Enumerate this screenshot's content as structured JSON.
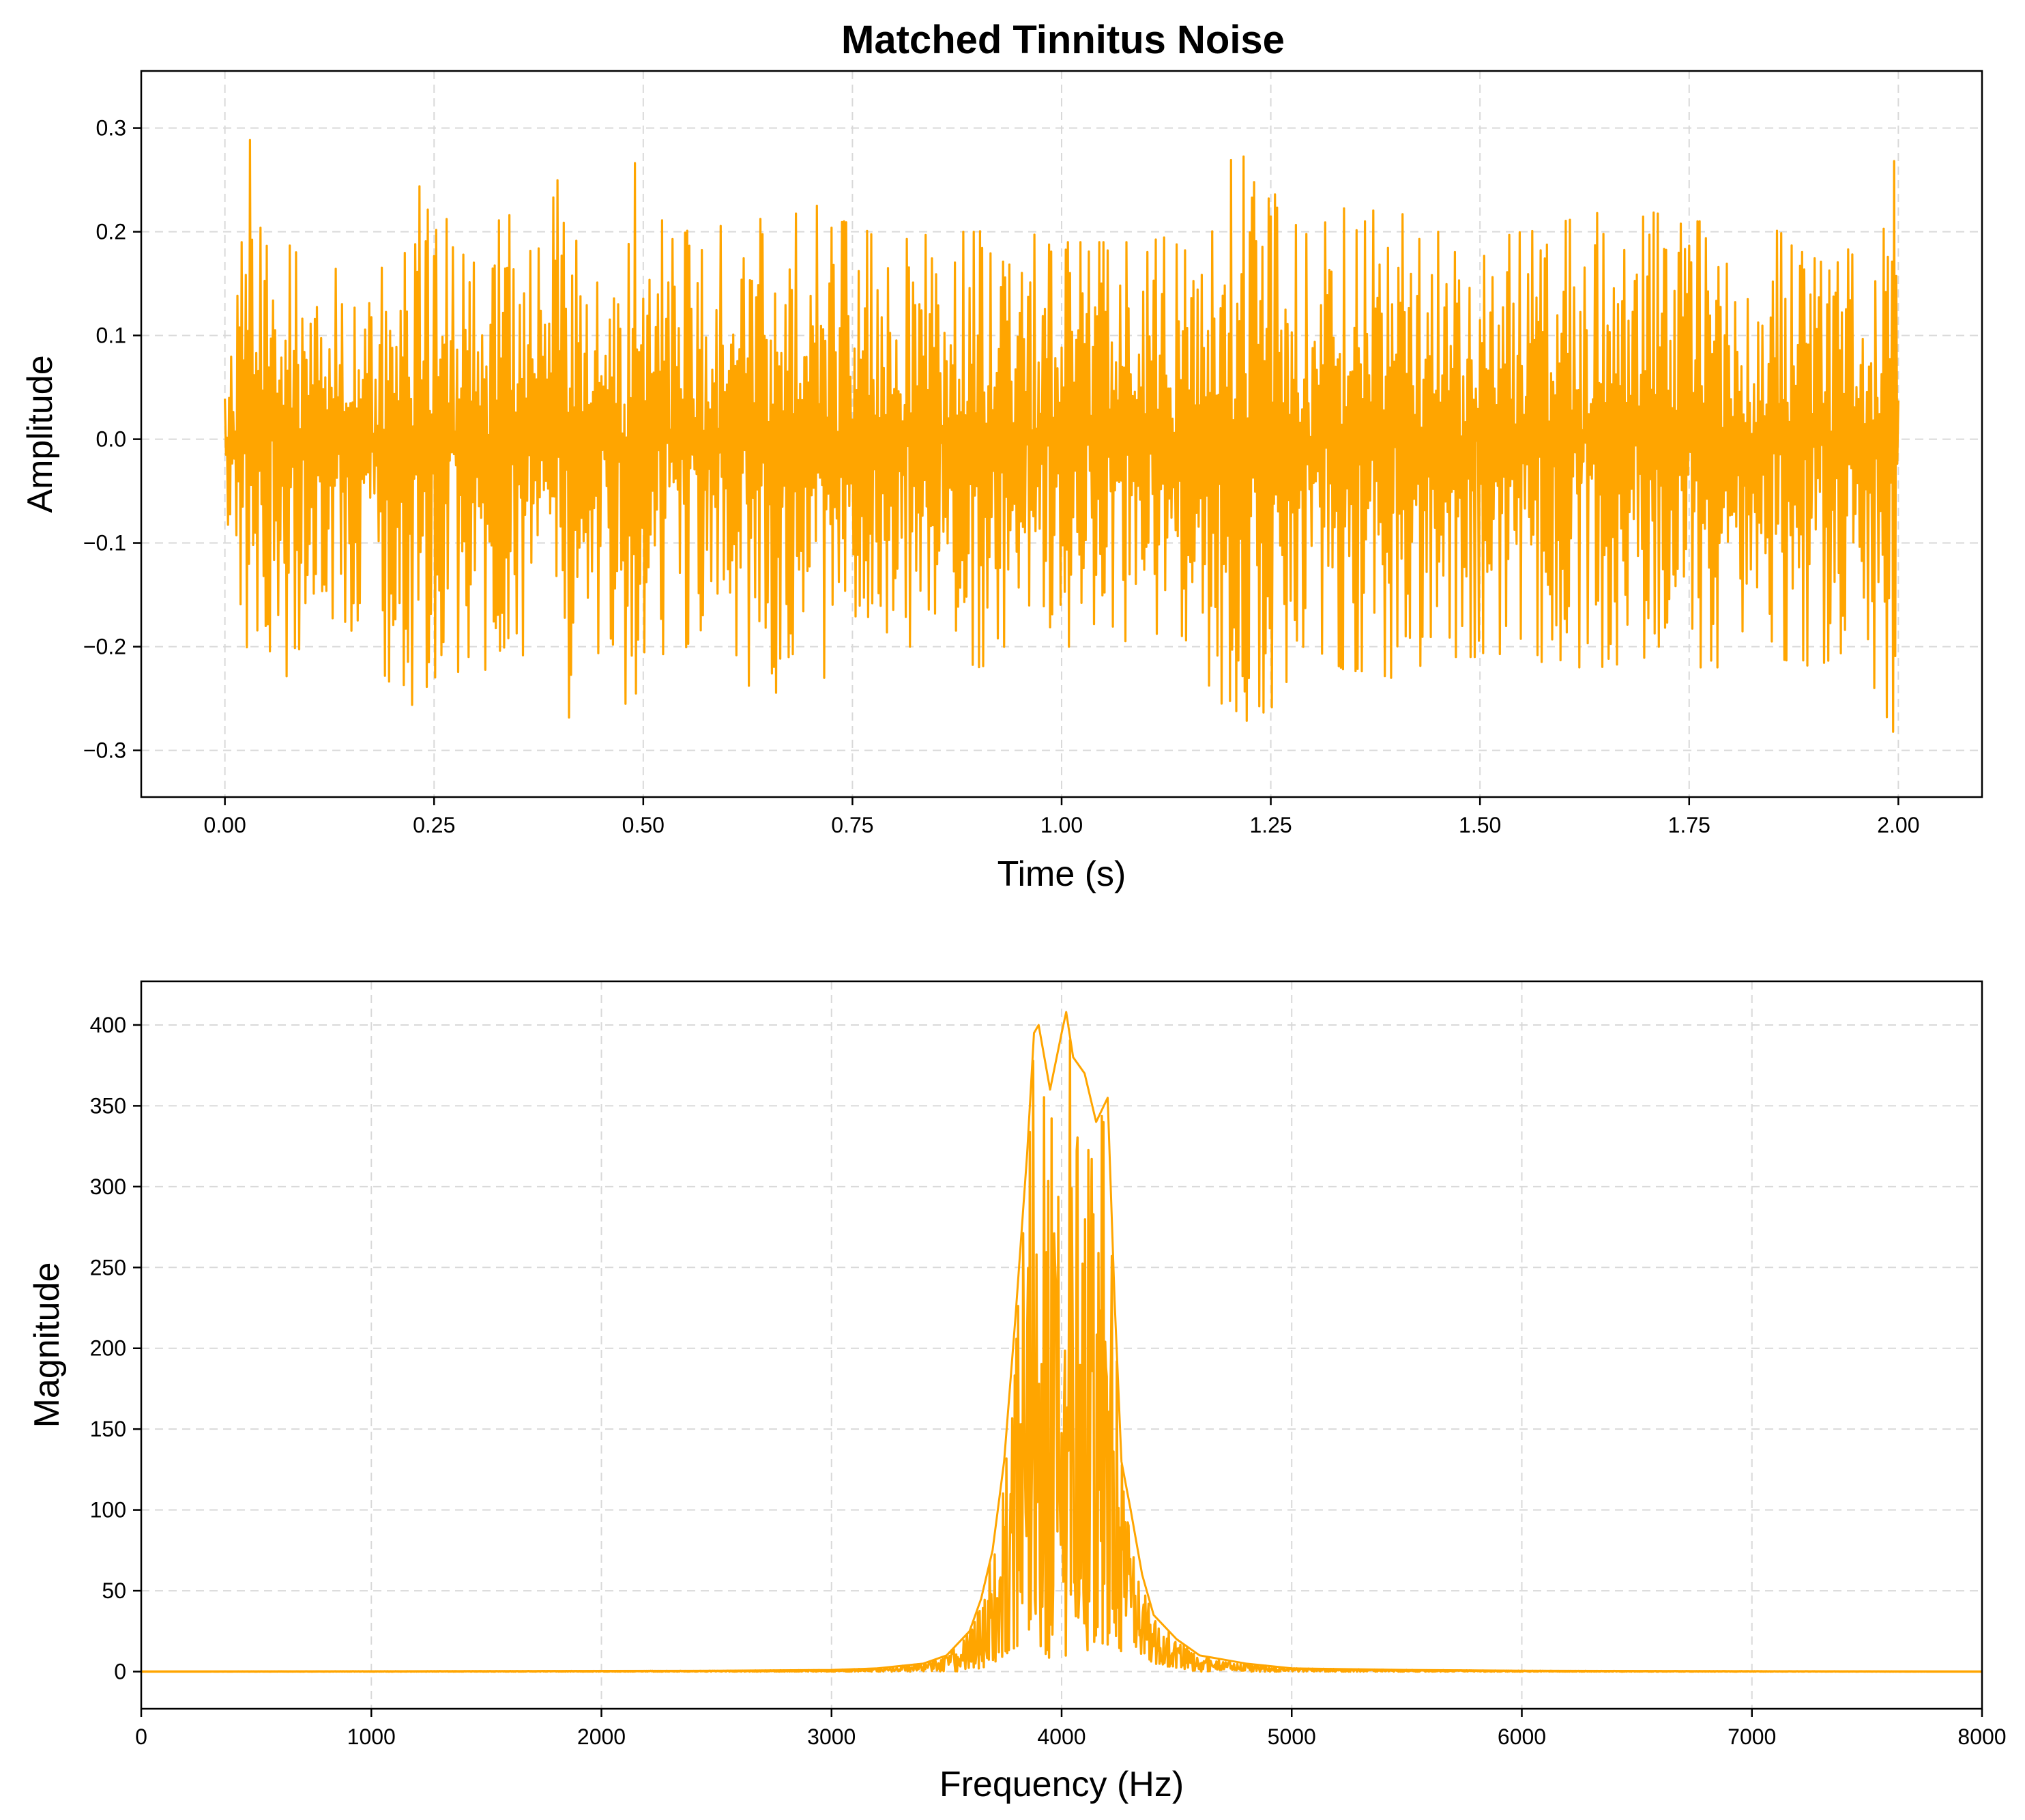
{
  "chart_data": [
    {
      "type": "line",
      "panel": "time-domain",
      "title": "Matched Tinnitus Noise",
      "xlabel": "Time (s)",
      "ylabel": "Amplitude",
      "xlim": [
        -0.1,
        2.1
      ],
      "ylim": [
        -0.345,
        0.355
      ],
      "xticks": [
        0.0,
        0.25,
        0.5,
        0.75,
        1.0,
        1.25,
        1.5,
        1.75,
        2.0
      ],
      "xtick_labels": [
        "0.00",
        "0.25",
        "0.50",
        "0.75",
        "1.00",
        "1.25",
        "1.50",
        "1.75",
        "2.00"
      ],
      "yticks": [
        -0.3,
        -0.2,
        -0.1,
        0.0,
        0.1,
        0.2,
        0.3
      ],
      "ytick_labels": [
        "−0.3",
        "−0.2",
        "−0.1",
        "0.0",
        "0.1",
        "0.2",
        "0.3"
      ],
      "grid": true,
      "color": "#FFA500",
      "series": [
        {
          "description": "band-limited noise envelope, upper extremes",
          "x": [
            0.0,
            0.02,
            0.032,
            0.05,
            0.075,
            0.1,
            0.15,
            0.175,
            0.22,
            0.25,
            0.3,
            0.35,
            0.414,
            0.45,
            0.48,
            0.487,
            0.5,
            0.55,
            0.6,
            0.64,
            0.7,
            0.71,
            0.74,
            0.8,
            0.85,
            0.9,
            0.95,
            1.0,
            1.05,
            1.1,
            1.15,
            1.18,
            1.2,
            1.25,
            1.3,
            1.35,
            1.4,
            1.45,
            1.5,
            1.55,
            1.6,
            1.65,
            1.7,
            1.75,
            1.8,
            1.85,
            1.9,
            1.95,
            1.998,
            2.0
          ],
          "upper": [
            0.04,
            0.19,
            0.32,
            0.2,
            0.23,
            0.17,
            0.19,
            0.22,
            0.26,
            0.23,
            0.2,
            0.22,
            0.26,
            0.21,
            0.27,
            0.28,
            0.22,
            0.2,
            0.22,
            0.26,
            0.2,
            0.28,
            0.21,
            0.19,
            0.2,
            0.2,
            0.21,
            0.19,
            0.19,
            0.19,
            0.2,
            0.24,
            0.29,
            0.24,
            0.2,
            0.23,
            0.22,
            0.2,
            0.19,
            0.2,
            0.21,
            0.22,
            0.22,
            0.21,
            0.21,
            0.2,
            0.21,
            0.2,
            0.29,
            0.05
          ],
          "lower": [
            -0.06,
            -0.18,
            -0.31,
            -0.2,
            -0.23,
            -0.18,
            -0.19,
            -0.21,
            -0.26,
            -0.23,
            -0.22,
            -0.23,
            -0.27,
            -0.21,
            -0.27,
            -0.29,
            -0.22,
            -0.2,
            -0.22,
            -0.26,
            -0.21,
            -0.27,
            -0.21,
            -0.2,
            -0.2,
            -0.22,
            -0.21,
            -0.2,
            -0.2,
            -0.19,
            -0.22,
            -0.24,
            -0.28,
            -0.26,
            -0.2,
            -0.23,
            -0.23,
            -0.21,
            -0.21,
            -0.21,
            -0.22,
            -0.22,
            -0.21,
            -0.22,
            -0.22,
            -0.21,
            -0.22,
            -0.2,
            -0.29,
            -0.03
          ]
        }
      ]
    },
    {
      "type": "line",
      "panel": "frequency-domain",
      "title": "",
      "xlabel": "Frequency (Hz)",
      "ylabel": "Magnitude",
      "xlim": [
        0,
        8000
      ],
      "ylim": [
        -23,
        427
      ],
      "xticks": [
        0,
        1000,
        2000,
        3000,
        4000,
        5000,
        6000,
        7000,
        8000
      ],
      "xtick_labels": [
        "0",
        "1000",
        "2000",
        "3000",
        "4000",
        "5000",
        "6000",
        "7000",
        "8000"
      ],
      "yticks": [
        0,
        50,
        100,
        150,
        200,
        250,
        300,
        350,
        400
      ],
      "ytick_labels": [
        "0",
        "50",
        "100",
        "150",
        "200",
        "250",
        "300",
        "350",
        "400"
      ],
      "grid": true,
      "color": "#FFA500",
      "series": [
        {
          "description": "magnitude spectrum envelope",
          "x": [
            0,
            2500,
            3000,
            3200,
            3400,
            3500,
            3600,
            3650,
            3700,
            3750,
            3800,
            3850,
            3880,
            3900,
            3950,
            4000,
            4020,
            4050,
            4100,
            4150,
            4200,
            4230,
            4260,
            4300,
            4350,
            4400,
            4500,
            4600,
            4800,
            5000,
            5500,
            6000,
            8000
          ],
          "upper": [
            0,
            0.5,
            1,
            2,
            5,
            10,
            25,
            45,
            75,
            130,
            220,
            320,
            395,
            400,
            360,
            395,
            408,
            380,
            370,
            340,
            355,
            230,
            130,
            100,
            60,
            35,
            20,
            10,
            5,
            2,
            1,
            0.5,
            0
          ],
          "lower": [
            0,
            0,
            0,
            0,
            0,
            0,
            0,
            2,
            5,
            10,
            15,
            20,
            5,
            15,
            8,
            20,
            3,
            15,
            10,
            20,
            15,
            25,
            10,
            20,
            10,
            5,
            2,
            0,
            0,
            0,
            0,
            0,
            0
          ]
        }
      ]
    }
  ]
}
